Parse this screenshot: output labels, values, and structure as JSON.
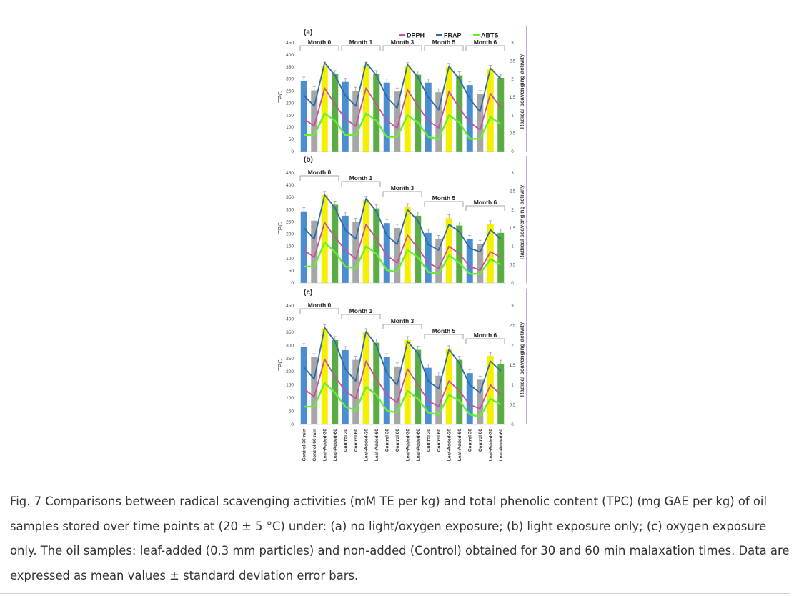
{
  "caption": "Fig. 7 Comparisons between radical scavenging activities (mM TE per kg) and total phenolic content (TPC) (mg GAE per kg) of oil samples stored over time points at (20 ± 5 °C) under: (a) no light/oxygen exposure; (b) light exposure only; (c) oxygen exposure only. The oil samples: leaf-added (0.3 mm particles) and non-added (Control) obtained for 30 and 60 min malaxation times. Data are expressed as mean values ± standard deviation error bars.",
  "colors": {
    "control30": "#4a8ed0",
    "control60": "#a6a6a6",
    "leaf30": "#f5f000",
    "leaf60": "#5aac45",
    "dpph": "#c8509a",
    "frap": "#2e6aa6",
    "abts": "#66ee33",
    "right_axis": "#9a73b8"
  },
  "chart_data": [
    {
      "type": "bar",
      "panel_label": "(a)",
      "legend": [
        "DPPH",
        "FRAP",
        "ABTS"
      ],
      "legend_position": "top-right",
      "ylabel": "TPC",
      "y2label": "Radical scavenging activity",
      "ylim": [
        0,
        450
      ],
      "y2lim": [
        0,
        3
      ],
      "yticks": [
        "0",
        "50",
        "100",
        "150",
        "200",
        "250",
        "300",
        "350",
        "400",
        "450"
      ],
      "y2ticks": [
        "0",
        "0.5",
        "1",
        "1.5",
        "2",
        "2.5",
        "3"
      ],
      "months": [
        "Month 0",
        "Month 1",
        "Month 3",
        "Month 5",
        "Month 6"
      ],
      "categories": [
        "Control 30 min",
        "Control 60 min",
        "Leaf-Added-30",
        "Leaf-Added-60",
        "Control 30",
        "Control 60",
        "Leaf-Added-30",
        "Leaf-Added-60",
        "Control 30",
        "Control 60",
        "Leaf-Added-30",
        "Leaf-Added-60",
        "Control 30",
        "Control 60",
        "Leaf-Added-30",
        "Leaf-Added-60",
        "Control 30",
        "Control 60",
        "Leaf-Added-30",
        "Leaf-Added-60"
      ],
      "tpc": [
        293,
        253,
        355,
        320,
        288,
        251,
        355,
        320,
        285,
        248,
        353,
        318,
        285,
        245,
        350,
        315,
        275,
        237,
        342,
        305
      ],
      "dpph": [
        0.9,
        0.7,
        1.75,
        1.3,
        0.9,
        0.7,
        1.75,
        1.3,
        0.85,
        0.65,
        1.7,
        1.25,
        0.85,
        0.65,
        1.65,
        1.2,
        0.8,
        0.6,
        1.6,
        1.2
      ],
      "frap": [
        1.55,
        1.25,
        2.45,
        2.1,
        1.55,
        1.25,
        2.45,
        2.1,
        1.5,
        1.2,
        2.4,
        2.05,
        1.5,
        1.15,
        2.35,
        2.0,
        1.45,
        1.1,
        2.3,
        2.0
      ],
      "abts": [
        0.45,
        0.45,
        1.05,
        0.85,
        0.45,
        0.45,
        1.05,
        0.85,
        0.4,
        0.4,
        1.0,
        0.8,
        0.4,
        0.35,
        1.0,
        0.8,
        0.35,
        0.35,
        0.95,
        0.75
      ]
    },
    {
      "type": "bar",
      "panel_label": "(b)",
      "ylabel": "TPC",
      "y2label": "Radical scavenging activity",
      "ylim": [
        0,
        450
      ],
      "y2lim": [
        0,
        3
      ],
      "yticks": [
        "0",
        "50",
        "100",
        "150",
        "200",
        "250",
        "300",
        "350",
        "400",
        "450"
      ],
      "y2ticks": [
        "0",
        "0.5",
        "1",
        "1.5",
        "2",
        "2.5",
        "3"
      ],
      "months": [
        "Month 0",
        "Month 1",
        "Month 3",
        "Month 5",
        "Month 6"
      ],
      "tpc": [
        293,
        255,
        360,
        320,
        275,
        250,
        340,
        305,
        245,
        225,
        310,
        275,
        205,
        180,
        265,
        235,
        180,
        160,
        240,
        205
      ],
      "dpph": [
        0.9,
        0.7,
        1.65,
        1.25,
        0.9,
        0.65,
        1.6,
        1.2,
        0.75,
        0.55,
        1.3,
        0.95,
        0.55,
        0.4,
        1.0,
        0.8,
        0.45,
        0.35,
        0.85,
        0.7
      ],
      "frap": [
        1.5,
        1.2,
        2.4,
        2.05,
        1.45,
        1.2,
        2.3,
        1.95,
        1.3,
        1.05,
        2.0,
        1.7,
        1.05,
        0.9,
        1.6,
        1.4,
        0.95,
        0.85,
        1.45,
        1.2
      ],
      "abts": [
        0.45,
        0.45,
        1.1,
        0.85,
        0.45,
        0.4,
        1.0,
        0.8,
        0.35,
        0.3,
        0.9,
        0.7,
        0.3,
        0.25,
        0.75,
        0.55,
        0.25,
        0.25,
        0.65,
        0.5
      ]
    },
    {
      "type": "bar",
      "panel_label": "(c)",
      "ylabel": "TPC",
      "y2label": "Radical scavenging activity",
      "ylim": [
        0,
        450
      ],
      "y2lim": [
        0,
        3
      ],
      "yticks": [
        "0",
        "50",
        "100",
        "150",
        "200",
        "250",
        "300",
        "350",
        "400",
        "450"
      ],
      "y2ticks": [
        "0",
        "0.5",
        "1",
        "1.5",
        "2",
        "2.5",
        "3"
      ],
      "months": [
        "Month 0",
        "Month 1",
        "Month 3",
        "Month 5",
        "Month 6"
      ],
      "tpc": [
        293,
        255,
        365,
        320,
        282,
        245,
        350,
        310,
        255,
        220,
        320,
        283,
        215,
        185,
        285,
        245,
        195,
        170,
        260,
        230
      ],
      "dpph": [
        0.9,
        0.7,
        1.65,
        1.2,
        0.85,
        0.65,
        1.6,
        1.15,
        0.75,
        0.55,
        1.4,
        1.0,
        0.6,
        0.45,
        1.1,
        0.85,
        0.5,
        0.4,
        1.0,
        0.75
      ],
      "frap": [
        1.45,
        1.15,
        2.45,
        2.1,
        1.4,
        1.1,
        2.35,
        2.0,
        1.3,
        1.0,
        2.1,
        1.8,
        1.1,
        0.9,
        1.9,
        1.55,
        1.0,
        0.8,
        1.6,
        1.35
      ],
      "abts": [
        0.45,
        0.45,
        1.05,
        0.8,
        0.45,
        0.35,
        0.95,
        0.75,
        0.35,
        0.3,
        0.85,
        0.65,
        0.3,
        0.25,
        0.75,
        0.6,
        0.25,
        0.2,
        0.65,
        0.5
      ]
    }
  ]
}
